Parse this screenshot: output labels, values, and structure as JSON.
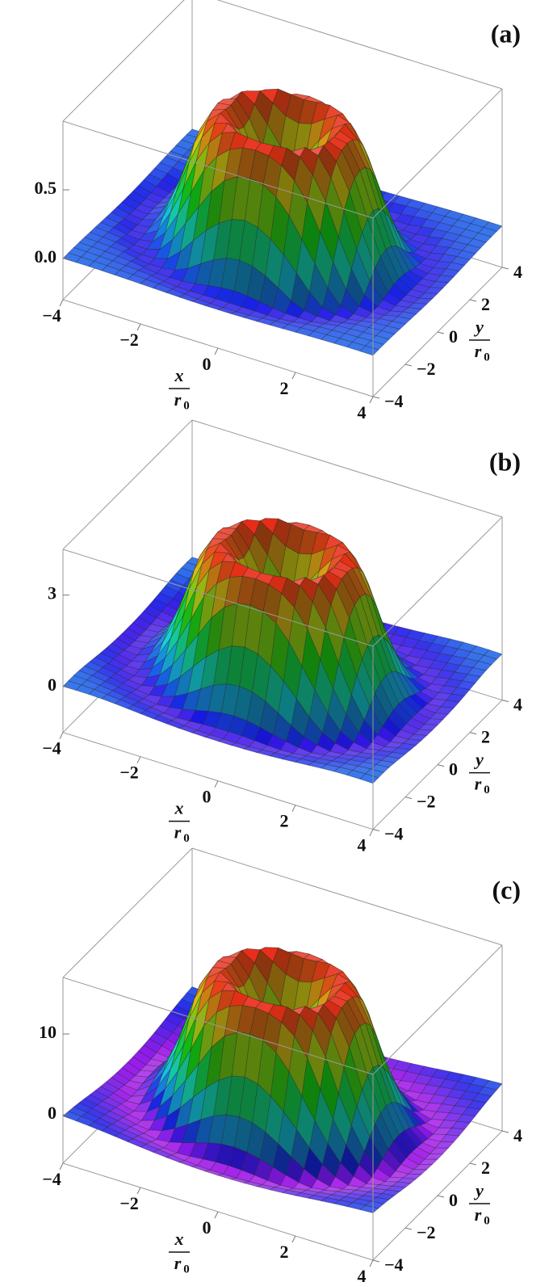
{
  "chart_data": [
    {
      "type": "surface3d",
      "panel_label": "(a)",
      "xlim": [
        -4,
        4
      ],
      "ylim": [
        -4,
        4
      ],
      "zlim": [
        -0.3,
        1.0
      ],
      "xticks": [
        {
          "value": -4,
          "label": "−4"
        },
        {
          "value": -2,
          "label": "−2"
        },
        0,
        2,
        4
      ],
      "yticks": [
        {
          "value": -4,
          "label": "−4"
        },
        {
          "value": -2,
          "label": "−2"
        },
        0,
        2,
        4
      ],
      "zticks": [
        {
          "value": 0,
          "label": "0.0"
        },
        0.5
      ],
      "x_label": {
        "num": "x",
        "den": "r",
        "sub": "0"
      },
      "y_label": {
        "num": "y",
        "den": "r",
        "sub": "0"
      },
      "profile": {
        "r": [
          0,
          0.5,
          1,
          1.5,
          2,
          2.5,
          3,
          3.5,
          4,
          5,
          6
        ],
        "z": [
          0.35,
          0.45,
          0.75,
          0.9,
          0.7,
          0.3,
          0.0,
          -0.05,
          -0.02,
          0,
          0
        ]
      }
    },
    {
      "type": "surface3d",
      "panel_label": "(b)",
      "xlim": [
        -4,
        4
      ],
      "ylim": [
        -4,
        4
      ],
      "zlim": [
        -1.5,
        4.5
      ],
      "xticks": [
        {
          "value": -4,
          "label": "−4"
        },
        {
          "value": -2,
          "label": "−2"
        },
        0,
        2,
        4
      ],
      "yticks": [
        {
          "value": -4,
          "label": "−4"
        },
        {
          "value": -2,
          "label": "−2"
        },
        0,
        2,
        4
      ],
      "zticks": [
        0,
        3
      ],
      "x_label": {
        "num": "x",
        "den": "r",
        "sub": "0"
      },
      "y_label": {
        "num": "y",
        "den": "r",
        "sub": "0"
      },
      "profile": {
        "r": [
          0,
          0.5,
          1,
          1.5,
          2,
          2.5,
          3,
          3.5,
          4,
          5,
          6
        ],
        "z": [
          1.6,
          2.0,
          3.3,
          4.0,
          3.2,
          1.4,
          0.1,
          -0.3,
          -0.2,
          0,
          0
        ]
      }
    },
    {
      "type": "surface3d",
      "panel_label": "(c)",
      "xlim": [
        -4,
        4
      ],
      "ylim": [
        -4,
        4
      ],
      "zlim": [
        -6,
        17
      ],
      "xticks": [
        {
          "value": -4,
          "label": "−4"
        },
        {
          "value": -2,
          "label": "−2"
        },
        0,
        2,
        4
      ],
      "yticks": [
        {
          "value": -4,
          "label": "−4"
        },
        {
          "value": -2,
          "label": "−2"
        },
        0,
        2,
        4
      ],
      "zticks": [
        0,
        10
      ],
      "x_label": {
        "num": "x",
        "den": "r",
        "sub": "0"
      },
      "y_label": {
        "num": "y",
        "den": "r",
        "sub": "0"
      },
      "profile": {
        "r": [
          0,
          0.5,
          1,
          1.5,
          2,
          2.5,
          3,
          3.5,
          4,
          5,
          6
        ],
        "z": [
          6,
          7.5,
          12.5,
          15,
          12,
          5,
          0,
          -2,
          -1.5,
          -0.5,
          0
        ]
      }
    }
  ]
}
